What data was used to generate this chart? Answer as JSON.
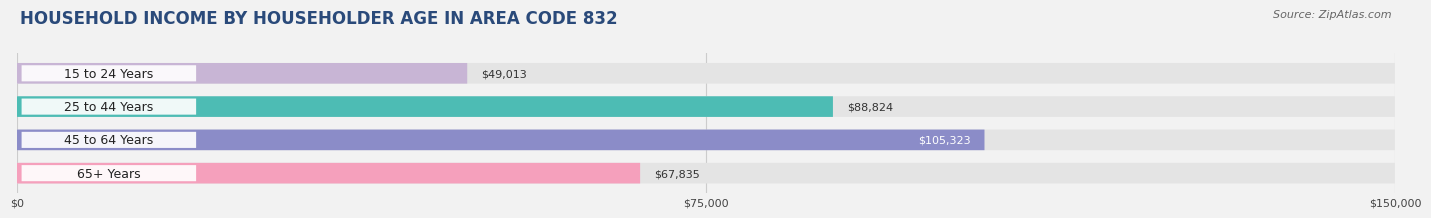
{
  "title": "HOUSEHOLD INCOME BY HOUSEHOLDER AGE IN AREA CODE 832",
  "source_text": "Source: ZipAtlas.com",
  "categories": [
    "15 to 24 Years",
    "25 to 44 Years",
    "45 to 64 Years",
    "65+ Years"
  ],
  "values": [
    49013,
    88824,
    105323,
    67835
  ],
  "bar_colors": [
    "#c8b5d5",
    "#4dbcb4",
    "#8b8cc8",
    "#f5a0bc"
  ],
  "label_colors": [
    "#333333",
    "#333333",
    "#ffffff",
    "#333333"
  ],
  "background_color": "#f2f2f2",
  "bar_bg_color": "#e4e4e4",
  "xlim": [
    0,
    150000
  ],
  "xticks": [
    0,
    75000,
    150000
  ],
  "xtick_labels": [
    "$0",
    "$75,000",
    "$150,000"
  ],
  "title_fontsize": 12,
  "source_fontsize": 8,
  "bar_height": 0.62,
  "value_fontsize": 8,
  "ylabel_fontsize": 9
}
